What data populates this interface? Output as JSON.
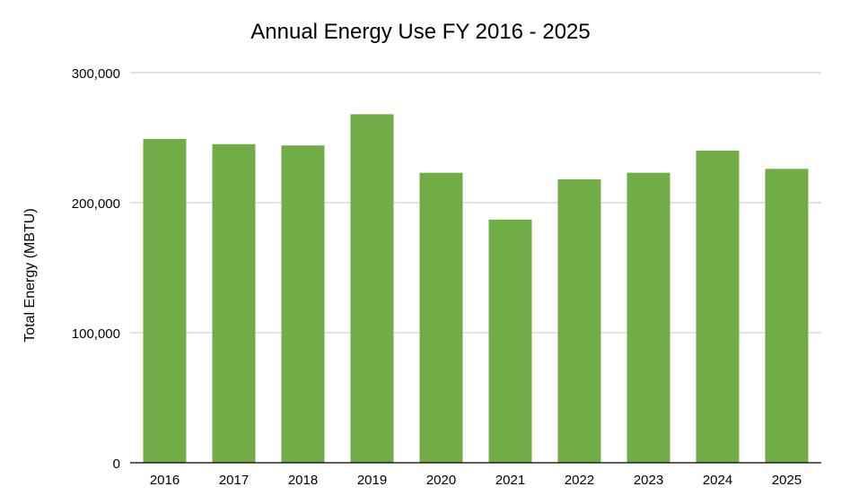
{
  "chart_data": {
    "type": "bar",
    "title": "Annual Energy Use FY 2016 - 2025",
    "xlabel": "",
    "ylabel": "Total Energy (MBTU)",
    "categories": [
      "2016",
      "2017",
      "2018",
      "2019",
      "2020",
      "2021",
      "2022",
      "2023",
      "2024",
      "2025"
    ],
    "values": [
      249000,
      245000,
      244000,
      268000,
      223000,
      187000,
      218000,
      223000,
      240000,
      226000
    ],
    "ylim": [
      0,
      300000
    ],
    "yticks": [
      0,
      100000,
      200000,
      300000
    ],
    "ytick_labels": [
      "0",
      "100,000",
      "200,000",
      "300,000"
    ],
    "grid": true,
    "legend": "none",
    "bar_color": "#70AD47"
  }
}
